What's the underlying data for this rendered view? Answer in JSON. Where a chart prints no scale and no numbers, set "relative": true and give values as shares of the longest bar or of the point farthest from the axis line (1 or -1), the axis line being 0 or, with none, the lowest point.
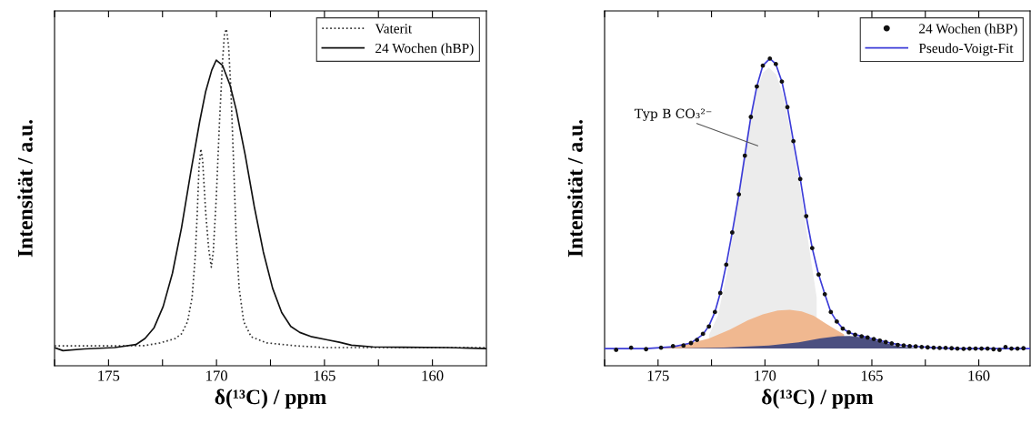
{
  "chart_data": [
    {
      "type": "line",
      "relative": true,
      "xlabel": "δ(¹³C) / ppm",
      "ylabel": "Intensität / a.u.",
      "xlim": [
        177.5,
        157.5
      ],
      "xticks": [
        {
          "value": 177.5,
          "label": null
        },
        175,
        {
          "value": 172.5,
          "label": null
        },
        170,
        {
          "value": 167.5,
          "label": null
        },
        165,
        {
          "value": 162.5,
          "label": null
        },
        160
      ],
      "tick_labels": "x",
      "legend": "top right",
      "grid": false,
      "series": [
        {
          "name": "Vaterit",
          "color": "#333333",
          "line_style": "dotted",
          "x": [
            177.5,
            174.72,
            173.31,
            172.61,
            171.9,
            171.62,
            171.34,
            171.13,
            170.99,
            170.89,
            170.81,
            170.72,
            170.64,
            170.5,
            170.36,
            170.24,
            170.15,
            170.01,
            169.86,
            169.72,
            169.63,
            169.54,
            169.44,
            169.33,
            169.2,
            169.09,
            168.95,
            168.74,
            168.39,
            167.68,
            166.28,
            164.87,
            163.47,
            160.65,
            157.5
          ],
          "values": [
            0.059,
            0.059,
            0.06,
            0.068,
            0.081,
            0.095,
            0.131,
            0.203,
            0.32,
            0.455,
            0.59,
            0.644,
            0.608,
            0.455,
            0.347,
            0.293,
            0.338,
            0.5,
            0.725,
            0.905,
            0.986,
            1.0,
            0.95,
            0.815,
            0.589,
            0.383,
            0.23,
            0.131,
            0.086,
            0.068,
            0.059,
            0.054,
            0.054,
            0.054,
            0.054
          ]
        },
        {
          "name": "24 Wochen (hBP)",
          "color": "#111111",
          "line_style": "solid",
          "x": [
            177.5,
            177.11,
            176.12,
            174.72,
            173.73,
            173.31,
            172.89,
            172.47,
            172.04,
            171.62,
            171.2,
            170.78,
            170.5,
            170.22,
            170.01,
            169.72,
            169.37,
            169.09,
            168.67,
            168.25,
            167.83,
            167.4,
            166.98,
            166.56,
            166.14,
            165.58,
            164.87,
            164.31,
            163.75,
            162.76,
            161.36,
            159.25,
            157.5
          ],
          "values": [
            0.054,
            0.045,
            0.05,
            0.054,
            0.063,
            0.081,
            0.113,
            0.176,
            0.275,
            0.41,
            0.572,
            0.725,
            0.815,
            0.878,
            0.908,
            0.892,
            0.833,
            0.761,
            0.626,
            0.473,
            0.338,
            0.23,
            0.158,
            0.117,
            0.099,
            0.086,
            0.077,
            0.07,
            0.061,
            0.056,
            0.055,
            0.054,
            0.051
          ]
        }
      ]
    },
    {
      "type": "line",
      "relative": true,
      "xlabel": "δ(¹³C) / ppm",
      "ylabel": "Intensität / a.u.",
      "xlim": [
        177.5,
        157.6
      ],
      "xticks": [
        {
          "value": 177.5,
          "label": null
        },
        175,
        {
          "value": 172.5,
          "label": null
        },
        170,
        {
          "value": 167.5,
          "label": null
        },
        165,
        {
          "value": 162.5,
          "label": null
        },
        160
      ],
      "tick_labels": "x",
      "legend": "top right",
      "grid": false,
      "annotations": [
        "Typ B CO₃²⁻"
      ],
      "series": [
        {
          "type": "area",
          "color": "#ececec",
          "x": [
            172.62,
            172.2,
            171.78,
            171.36,
            170.94,
            170.52,
            170.1,
            169.82,
            169.47,
            169.12,
            168.7,
            168.28,
            167.86,
            167.58
          ],
          "values": [
            0.1,
            0.163,
            0.301,
            0.498,
            0.716,
            0.864,
            0.953,
            0.971,
            0.948,
            0.874,
            0.726,
            0.548,
            0.35,
            0.222
          ]
        },
        {
          "type": "area",
          "color": "#f0b890",
          "x": [
            175.42,
            174.02,
            172.62,
            171.64,
            170.8,
            170.1,
            169.4,
            168.84,
            168.28,
            167.72,
            167.16,
            166.6,
            166.3
          ],
          "values": [
            0.056,
            0.064,
            0.089,
            0.118,
            0.148,
            0.167,
            0.18,
            0.182,
            0.177,
            0.163,
            0.138,
            0.114,
            0.102
          ]
        },
        {
          "type": "area",
          "color": "#4b4f80",
          "x": [
            174.72,
            171.92,
            169.82,
            168.42,
            167.44,
            166.6,
            166.04,
            165.34,
            164.63,
            163.79,
            162.81
          ],
          "values": [
            0.056,
            0.059,
            0.066,
            0.076,
            0.089,
            0.096,
            0.097,
            0.092,
            0.079,
            0.064,
            0.056
          ]
        },
        {
          "type": "scatter",
          "name": "24 Wochen (hBP)",
          "color": "#111111",
          "marker": "circle",
          "x": [
            176.96,
            176.26,
            175.56,
            174.86,
            174.3,
            173.81,
            173.46,
            173.18,
            172.9,
            172.62,
            172.34,
            172.09,
            171.81,
            171.53,
            171.22,
            170.94,
            170.66,
            170.38,
            170.1,
            169.77,
            169.49,
            169.21,
            168.95,
            168.67,
            168.35,
            168.07,
            167.79,
            167.49,
            167.2,
            166.92,
            166.64,
            166.36,
            166.08,
            165.78,
            165.48,
            165.2,
            164.91,
            164.63,
            164.35,
            164.07,
            163.79,
            163.51,
            163.23,
            162.95,
            162.67,
            162.39,
            162.11,
            161.83,
            161.55,
            161.27,
            161.0,
            160.71,
            160.43,
            160.15,
            159.87,
            159.59,
            159.31,
            159.03,
            158.75,
            158.47,
            158.19,
            157.91
          ],
          "values": [
            0.052,
            0.059,
            0.054,
            0.059,
            0.064,
            0.066,
            0.074,
            0.084,
            0.104,
            0.128,
            0.175,
            0.237,
            0.329,
            0.434,
            0.558,
            0.684,
            0.81,
            0.909,
            0.977,
            1.0,
            0.982,
            0.925,
            0.842,
            0.731,
            0.608,
            0.487,
            0.383,
            0.297,
            0.233,
            0.175,
            0.144,
            0.121,
            0.109,
            0.101,
            0.096,
            0.092,
            0.087,
            0.082,
            0.077,
            0.073,
            0.068,
            0.066,
            0.064,
            0.063,
            0.061,
            0.06,
            0.059,
            0.058,
            0.058,
            0.057,
            0.056,
            0.055,
            0.056,
            0.056,
            0.056,
            0.056,
            0.054,
            0.052,
            0.061,
            0.056,
            0.056,
            0.057
          ]
        },
        {
          "type": "line",
          "name": "Pseudo-Voigt-Fit",
          "color": "#3c3cd8",
          "line_style": "solid",
          "x": [
            177.5,
            175.56,
            174.3,
            173.46,
            172.9,
            172.62,
            172.34,
            172.09,
            171.81,
            171.53,
            171.22,
            170.94,
            170.66,
            170.38,
            170.1,
            169.77,
            169.49,
            169.21,
            168.95,
            168.67,
            168.35,
            168.07,
            167.79,
            167.49,
            167.2,
            166.92,
            166.64,
            166.36,
            166.08,
            165.78,
            165.2,
            164.63,
            164.07,
            163.51,
            162.95,
            162.11,
            161.0,
            159.31,
            157.6
          ],
          "values": [
            0.056,
            0.056,
            0.062,
            0.074,
            0.102,
            0.13,
            0.175,
            0.237,
            0.329,
            0.434,
            0.558,
            0.684,
            0.81,
            0.909,
            0.977,
            1.0,
            0.982,
            0.925,
            0.842,
            0.731,
            0.608,
            0.487,
            0.383,
            0.297,
            0.233,
            0.175,
            0.144,
            0.121,
            0.109,
            0.101,
            0.092,
            0.082,
            0.073,
            0.066,
            0.063,
            0.059,
            0.056,
            0.056,
            0.056
          ]
        }
      ]
    }
  ]
}
